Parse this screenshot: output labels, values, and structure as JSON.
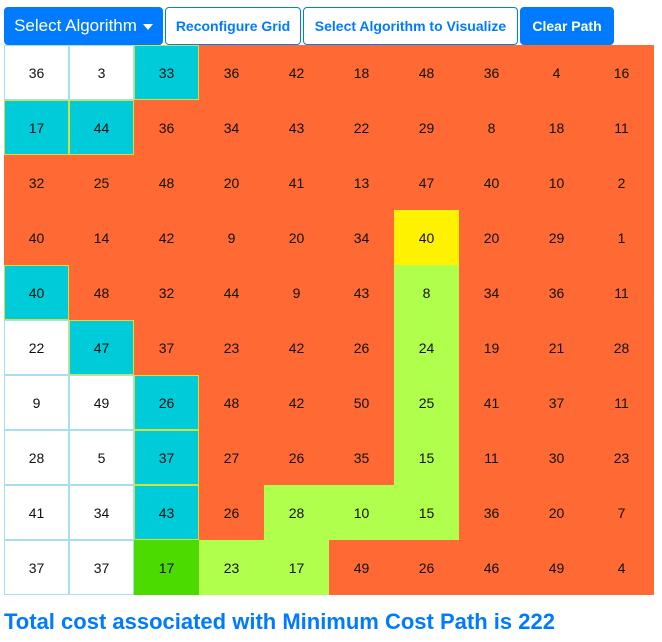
{
  "toolbar": {
    "select_algorithm_label": "Select Algorithm",
    "reconfigure_label": "Reconfigure Grid",
    "visualize_label": "Select Algorithm to Visualize",
    "clear_label": "Clear Path",
    "icons": [
      "caret-down-icon"
    ]
  },
  "colors": {
    "unvisited": "#ffffff",
    "visited": "#00cbd9",
    "explored": "#ff6a34",
    "current": "#fff200",
    "path": "#b0ff4d",
    "start": "#4cdb00",
    "accent": "#007bff"
  },
  "legend_codes": {
    "u": "unvisited",
    "v": "visited",
    "o": "explored",
    "y": "current",
    "l": "path",
    "g": "start"
  },
  "grid": {
    "values": [
      [
        36,
        3,
        33,
        36,
        42,
        18,
        48,
        36,
        4,
        16
      ],
      [
        17,
        44,
        36,
        34,
        43,
        22,
        29,
        8,
        18,
        11
      ],
      [
        32,
        25,
        48,
        20,
        41,
        13,
        47,
        40,
        10,
        2
      ],
      [
        40,
        14,
        42,
        9,
        20,
        34,
        40,
        20,
        29,
        1
      ],
      [
        40,
        48,
        32,
        44,
        9,
        43,
        8,
        34,
        36,
        11
      ],
      [
        22,
        47,
        37,
        23,
        42,
        26,
        24,
        19,
        21,
        28
      ],
      [
        9,
        49,
        26,
        48,
        42,
        50,
        25,
        41,
        37,
        11
      ],
      [
        28,
        5,
        37,
        27,
        26,
        35,
        15,
        11,
        30,
        23
      ],
      [
        41,
        34,
        43,
        26,
        28,
        10,
        15,
        36,
        20,
        7
      ],
      [
        37,
        37,
        17,
        23,
        17,
        49,
        26,
        46,
        49,
        4
      ]
    ],
    "states": [
      [
        "u",
        "u",
        "v",
        "o",
        "o",
        "o",
        "o",
        "o",
        "o",
        "o"
      ],
      [
        "v",
        "v",
        "o",
        "o",
        "o",
        "o",
        "o",
        "o",
        "o",
        "o"
      ],
      [
        "o",
        "o",
        "o",
        "o",
        "o",
        "o",
        "o",
        "o",
        "o",
        "o"
      ],
      [
        "o",
        "o",
        "o",
        "o",
        "o",
        "o",
        "y",
        "o",
        "o",
        "o"
      ],
      [
        "v",
        "o",
        "o",
        "o",
        "o",
        "o",
        "l",
        "o",
        "o",
        "o"
      ],
      [
        "u",
        "v",
        "o",
        "o",
        "o",
        "o",
        "l",
        "o",
        "o",
        "o"
      ],
      [
        "u",
        "u",
        "v",
        "o",
        "o",
        "o",
        "l",
        "o",
        "o",
        "o"
      ],
      [
        "u",
        "u",
        "v",
        "o",
        "o",
        "o",
        "l",
        "o",
        "o",
        "o"
      ],
      [
        "u",
        "u",
        "v",
        "o",
        "l",
        "l",
        "l",
        "o",
        "o",
        "o"
      ],
      [
        "u",
        "u",
        "g",
        "l",
        "l",
        "o",
        "o",
        "o",
        "o",
        "o"
      ]
    ]
  },
  "result": {
    "total_label": "Total cost associated with Minimum Cost Path is 222"
  }
}
